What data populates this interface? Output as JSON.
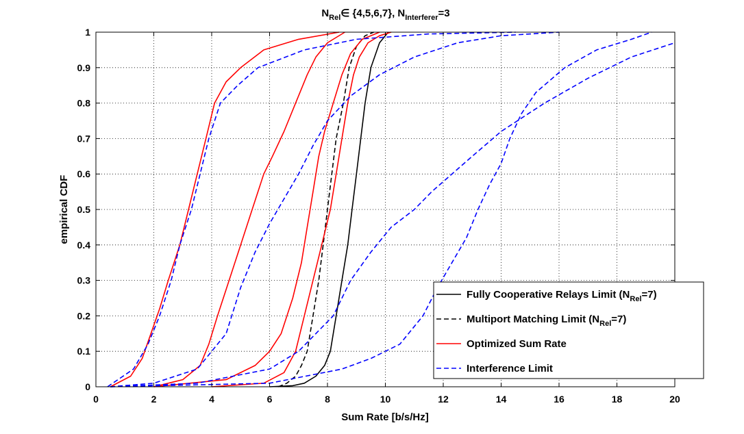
{
  "chart_data": {
    "type": "line",
    "title": {
      "base1": "N",
      "sub1": "Rel",
      "mid": "∈ {4,5,6,7}, N",
      "sub2": "Interferer",
      "end": "=3"
    },
    "xlabel": "Sum Rate [b/s/Hz]",
    "ylabel": "empirical CDF",
    "xlim": [
      0,
      20
    ],
    "ylim": [
      0,
      1
    ],
    "xticks": [
      0,
      2,
      4,
      6,
      8,
      10,
      12,
      14,
      16,
      18,
      20
    ],
    "yticks": [
      0,
      0.1,
      0.2,
      0.3,
      0.4,
      0.5,
      0.6,
      0.7,
      0.8,
      0.9,
      1
    ],
    "grid": true,
    "legend_position": "bottom-right",
    "legend": [
      {
        "text": "Fully Cooperative Relays Limit (N",
        "sub": "Rel",
        "tail": "=7)",
        "color": "#000000",
        "dash": "solid"
      },
      {
        "text": "Multiport Matching Limit (N",
        "sub": "Rel",
        "tail": "=7)",
        "color": "#000000",
        "dash": "dashed"
      },
      {
        "text": "Optimized Sum Rate",
        "sub": "",
        "tail": "",
        "color": "#ff0000",
        "dash": "solid"
      },
      {
        "text": "Interference Limit",
        "sub": "",
        "tail": "",
        "color": "#0000ff",
        "dash": "dashed"
      }
    ],
    "series": [
      {
        "group": "fully-cooperative",
        "color": "#000000",
        "dash": "solid",
        "points": [
          [
            6.0,
            0
          ],
          [
            6.8,
            0.003
          ],
          [
            7.2,
            0.01
          ],
          [
            7.6,
            0.03
          ],
          [
            7.9,
            0.06
          ],
          [
            8.1,
            0.1
          ],
          [
            8.3,
            0.2
          ],
          [
            8.5,
            0.3
          ],
          [
            8.7,
            0.4
          ],
          [
            8.85,
            0.5
          ],
          [
            9.0,
            0.6
          ],
          [
            9.15,
            0.7
          ],
          [
            9.3,
            0.8
          ],
          [
            9.5,
            0.9
          ],
          [
            9.8,
            0.97
          ],
          [
            10.1,
            1.0
          ]
        ]
      },
      {
        "group": "multiport-matching",
        "color": "#000000",
        "dash": "dashed",
        "points": [
          [
            6.3,
            0
          ],
          [
            6.6,
            0.01
          ],
          [
            6.9,
            0.03
          ],
          [
            7.1,
            0.06
          ],
          [
            7.3,
            0.1
          ],
          [
            7.5,
            0.2
          ],
          [
            7.7,
            0.3
          ],
          [
            7.85,
            0.4
          ],
          [
            8.0,
            0.5
          ],
          [
            8.15,
            0.6
          ],
          [
            8.3,
            0.7
          ],
          [
            8.55,
            0.8
          ],
          [
            8.75,
            0.9
          ],
          [
            9.0,
            0.96
          ],
          [
            9.3,
            0.99
          ],
          [
            9.6,
            1.0
          ]
        ]
      },
      {
        "group": "optimized",
        "color": "#ff0000",
        "dash": "solid",
        "points": [
          [
            0.5,
            0
          ],
          [
            1.2,
            0.03
          ],
          [
            1.6,
            0.08
          ],
          [
            1.9,
            0.15
          ],
          [
            2.2,
            0.22
          ],
          [
            2.5,
            0.3
          ],
          [
            2.9,
            0.4
          ],
          [
            3.2,
            0.5
          ],
          [
            3.5,
            0.6
          ],
          [
            3.8,
            0.7
          ],
          [
            4.1,
            0.8
          ],
          [
            4.5,
            0.86
          ],
          [
            5.0,
            0.9
          ],
          [
            5.8,
            0.95
          ],
          [
            7.0,
            0.98
          ],
          [
            8.4,
            1.0
          ]
        ]
      },
      {
        "group": "optimized",
        "color": "#ff0000",
        "dash": "solid",
        "points": [
          [
            2.0,
            0
          ],
          [
            3.0,
            0.02
          ],
          [
            3.6,
            0.06
          ],
          [
            3.9,
            0.12
          ],
          [
            4.2,
            0.2
          ],
          [
            4.6,
            0.3
          ],
          [
            5.0,
            0.4
          ],
          [
            5.4,
            0.5
          ],
          [
            5.8,
            0.6
          ],
          [
            6.1,
            0.65
          ],
          [
            6.5,
            0.72
          ],
          [
            6.9,
            0.8
          ],
          [
            7.3,
            0.88
          ],
          [
            7.6,
            0.93
          ],
          [
            8.0,
            0.97
          ],
          [
            8.6,
            1.0
          ]
        ]
      },
      {
        "group": "optimized",
        "color": "#ff0000",
        "dash": "solid",
        "points": [
          [
            2.0,
            0
          ],
          [
            4.5,
            0.02
          ],
          [
            5.5,
            0.06
          ],
          [
            6.0,
            0.1
          ],
          [
            6.4,
            0.15
          ],
          [
            6.8,
            0.25
          ],
          [
            7.1,
            0.35
          ],
          [
            7.3,
            0.45
          ],
          [
            7.5,
            0.55
          ],
          [
            7.7,
            0.65
          ],
          [
            7.9,
            0.72
          ],
          [
            8.2,
            0.8
          ],
          [
            8.5,
            0.88
          ],
          [
            8.8,
            0.94
          ],
          [
            9.2,
            0.98
          ],
          [
            9.8,
            1.0
          ]
        ]
      },
      {
        "group": "optimized",
        "color": "#ff0000",
        "dash": "solid",
        "points": [
          [
            4.0,
            0
          ],
          [
            5.8,
            0.01
          ],
          [
            6.5,
            0.04
          ],
          [
            6.9,
            0.1
          ],
          [
            7.2,
            0.2
          ],
          [
            7.5,
            0.3
          ],
          [
            7.8,
            0.4
          ],
          [
            8.1,
            0.5
          ],
          [
            8.3,
            0.6
          ],
          [
            8.5,
            0.7
          ],
          [
            8.7,
            0.8
          ],
          [
            8.9,
            0.88
          ],
          [
            9.1,
            0.93
          ],
          [
            9.4,
            0.97
          ],
          [
            9.8,
            0.99
          ],
          [
            10.2,
            1.0
          ]
        ]
      },
      {
        "group": "interference",
        "color": "#0000ff",
        "dash": "dashed",
        "points": [
          [
            0.4,
            0
          ],
          [
            1.3,
            0.05
          ],
          [
            1.8,
            0.12
          ],
          [
            2.2,
            0.2
          ],
          [
            2.6,
            0.3
          ],
          [
            2.9,
            0.4
          ],
          [
            3.3,
            0.5
          ],
          [
            3.6,
            0.6
          ],
          [
            3.9,
            0.7
          ],
          [
            4.3,
            0.8
          ],
          [
            4.9,
            0.85
          ],
          [
            5.6,
            0.9
          ],
          [
            7.2,
            0.95
          ],
          [
            9.0,
            0.98
          ],
          [
            11.5,
            0.995
          ],
          [
            14.5,
            1.0
          ]
        ]
      },
      {
        "group": "interference",
        "color": "#0000ff",
        "dash": "dashed",
        "points": [
          [
            0.5,
            0
          ],
          [
            2.0,
            0.01
          ],
          [
            3.5,
            0.05
          ],
          [
            4.5,
            0.15
          ],
          [
            5.0,
            0.28
          ],
          [
            5.5,
            0.38
          ],
          [
            6.0,
            0.46
          ],
          [
            6.5,
            0.53
          ],
          [
            7.0,
            0.6
          ],
          [
            7.5,
            0.68
          ],
          [
            8.0,
            0.75
          ],
          [
            8.8,
            0.82
          ],
          [
            9.8,
            0.88
          ],
          [
            11.0,
            0.93
          ],
          [
            12.5,
            0.97
          ],
          [
            14.0,
            0.99
          ],
          [
            16.0,
            1.0
          ]
        ]
      },
      {
        "group": "interference",
        "color": "#0000ff",
        "dash": "dashed",
        "points": [
          [
            0.5,
            0
          ],
          [
            3.5,
            0.01
          ],
          [
            6.0,
            0.05
          ],
          [
            7.0,
            0.1
          ],
          [
            7.6,
            0.15
          ],
          [
            8.2,
            0.2
          ],
          [
            8.8,
            0.3
          ],
          [
            9.5,
            0.38
          ],
          [
            10.2,
            0.45
          ],
          [
            11.0,
            0.5
          ],
          [
            11.6,
            0.55
          ],
          [
            12.3,
            0.6
          ],
          [
            13.0,
            0.65
          ],
          [
            14.0,
            0.72
          ],
          [
            15.5,
            0.8
          ],
          [
            17.0,
            0.87
          ],
          [
            18.5,
            0.93
          ],
          [
            20.0,
            0.97
          ]
        ]
      },
      {
        "group": "interference",
        "color": "#0000ff",
        "dash": "dashed",
        "points": [
          [
            0.5,
            0
          ],
          [
            6.0,
            0.01
          ],
          [
            8.5,
            0.05
          ],
          [
            9.5,
            0.08
          ],
          [
            10.5,
            0.12
          ],
          [
            11.3,
            0.2
          ],
          [
            11.8,
            0.28
          ],
          [
            12.3,
            0.35
          ],
          [
            12.8,
            0.42
          ],
          [
            13.2,
            0.5
          ],
          [
            13.6,
            0.57
          ],
          [
            14.0,
            0.63
          ],
          [
            14.3,
            0.7
          ],
          [
            14.7,
            0.77
          ],
          [
            15.2,
            0.83
          ],
          [
            16.2,
            0.9
          ],
          [
            17.3,
            0.95
          ],
          [
            18.5,
            0.98
          ],
          [
            19.2,
            1.0
          ]
        ]
      }
    ]
  }
}
